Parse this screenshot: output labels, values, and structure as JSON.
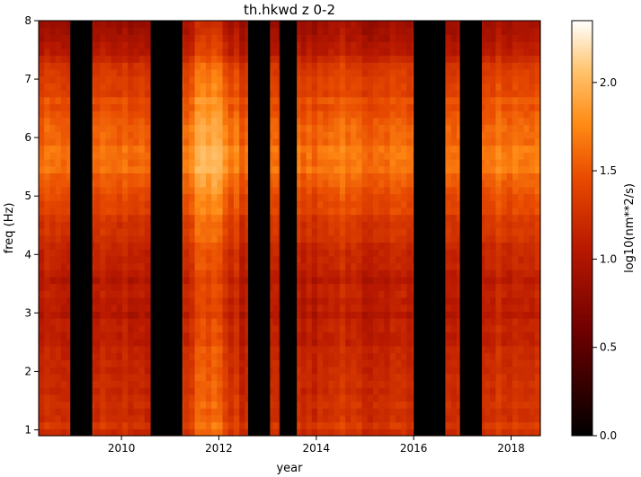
{
  "chart_data": {
    "type": "heatmap",
    "title": "th.hkwd z 0-2",
    "xlabel": "year",
    "ylabel": "freq (Hz)",
    "xlim": [
      2008.3,
      2018.6
    ],
    "ylim": [
      0.9,
      8.0
    ],
    "x_ticks": [
      2010,
      2012,
      2014,
      2016,
      2018
    ],
    "x_tick_labels": [
      "2010",
      "2012",
      "2014",
      "2016",
      "2018"
    ],
    "y_ticks": [
      1,
      2,
      3,
      4,
      5,
      6,
      7,
      8
    ],
    "y_tick_labels": [
      "1",
      "2",
      "3",
      "4",
      "5",
      "6",
      "7",
      "8"
    ],
    "colorbar": {
      "label": "log10(nm**2/s)",
      "range": [
        0.0,
        2.35
      ],
      "ticks": [
        0.0,
        0.5,
        1.0,
        1.5,
        2.0
      ],
      "tick_labels": [
        "0.0",
        "0.5",
        "1.0",
        "1.5",
        "2.0"
      ],
      "colormap": "gist_heat"
    },
    "data_gaps_years": [
      [
        2008.95,
        2009.4
      ],
      [
        2010.6,
        2011.25
      ],
      [
        2012.6,
        2013.05
      ],
      [
        2013.25,
        2013.6
      ],
      [
        2016.0,
        2016.65
      ],
      [
        2016.95,
        2017.4
      ]
    ],
    "intensity_profile_freq": {
      "freq": [
        1.0,
        1.5,
        2.0,
        2.5,
        3.0,
        3.5,
        4.0,
        4.5,
        5.0,
        5.5,
        6.0,
        6.5,
        7.0,
        7.5,
        8.0
      ],
      "typical_log10": [
        1.25,
        1.2,
        1.15,
        1.1,
        1.05,
        1.05,
        1.1,
        1.25,
        1.45,
        1.6,
        1.6,
        1.45,
        1.35,
        1.05,
        0.85
      ]
    },
    "bright_period_years": [
      2011.5,
      2012.1
    ],
    "grid": false
  }
}
